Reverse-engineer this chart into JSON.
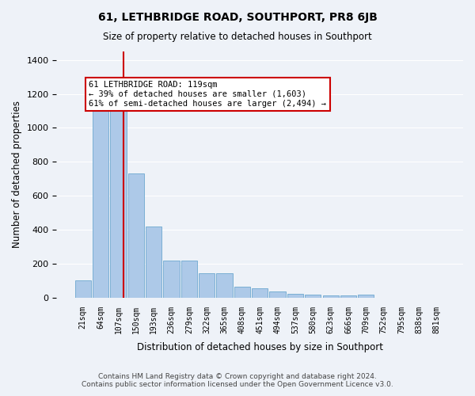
{
  "title": "61, LETHBRIDGE ROAD, SOUTHPORT, PR8 6JB",
  "subtitle": "Size of property relative to detached houses in Southport",
  "xlabel": "Distribution of detached houses by size in Southport",
  "ylabel": "Number of detached properties",
  "footer_line1": "Contains HM Land Registry data © Crown copyright and database right 2024.",
  "footer_line2": "Contains public sector information licensed under the Open Government Licence v3.0.",
  "categories": [
    "21sqm",
    "64sqm",
    "107sqm",
    "150sqm",
    "193sqm",
    "236sqm",
    "279sqm",
    "322sqm",
    "365sqm",
    "408sqm",
    "451sqm",
    "494sqm",
    "537sqm",
    "580sqm",
    "623sqm",
    "666sqm",
    "709sqm",
    "752sqm",
    "795sqm",
    "838sqm",
    "881sqm"
  ],
  "values": [
    100,
    1160,
    1160,
    730,
    420,
    220,
    220,
    145,
    145,
    65,
    55,
    35,
    25,
    20,
    15,
    15,
    20,
    0,
    0,
    0,
    0
  ],
  "bar_color": "#adc9e8",
  "bar_edge_color": "#7aafd4",
  "bg_color": "#eef2f8",
  "grid_color": "#ffffff",
  "annotation_text": "61 LETHBRIDGE ROAD: 119sqm\n← 39% of detached houses are smaller (1,603)\n61% of semi-detached houses are larger (2,494) →",
  "annotation_box_color": "#ffffff",
  "annotation_box_edge": "#cc0000",
  "vline_x_index": 2.28,
  "vline_color": "#cc0000",
  "ylim": [
    0,
    1450
  ],
  "yticks": [
    0,
    200,
    400,
    600,
    800,
    1000,
    1200,
    1400
  ]
}
